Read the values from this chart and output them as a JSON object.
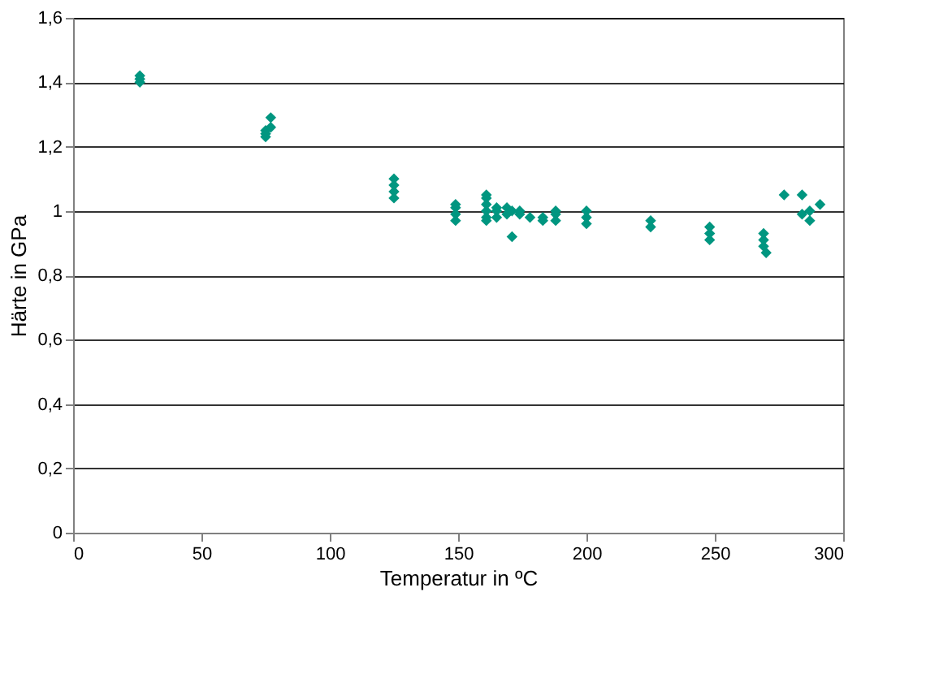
{
  "chart_data": {
    "type": "scatter",
    "xlabel": "Temperatur in ºC",
    "ylabel": "Härte in GPa",
    "marker": "diamond",
    "grid": "y",
    "xlim": [
      0,
      300
    ],
    "xticks": [
      0,
      50,
      100,
      150,
      200,
      250,
      300
    ],
    "ylim": [
      0,
      1.6
    ],
    "yticks": [
      {
        "value": 0,
        "label": "0"
      },
      {
        "value": 0.2,
        "label": "0,2"
      },
      {
        "value": 0.4,
        "label": "0,4"
      },
      {
        "value": 0.6,
        "label": "0,6"
      },
      {
        "value": 0.8,
        "label": "0,8"
      },
      {
        "value": 1,
        "label": "1"
      },
      {
        "value": 1.2,
        "label": "1,2"
      },
      {
        "value": 1.4,
        "label": "1,4"
      },
      {
        "value": 1.6,
        "label": "1,6"
      }
    ],
    "series": [
      {
        "color": "#009680",
        "x": [
          26,
          26,
          26,
          75,
          75,
          75,
          77,
          77,
          125,
          125,
          125,
          125,
          149,
          149,
          149,
          149,
          161,
          161,
          161,
          161,
          161,
          161,
          165,
          165,
          165,
          169,
          169,
          171,
          171,
          174,
          174,
          178,
          183,
          183,
          188,
          188,
          188,
          200,
          200,
          200,
          225,
          225,
          248,
          248,
          248,
          269,
          269,
          269,
          270,
          277,
          284,
          284,
          287,
          287,
          291
        ],
        "values": [
          1.4,
          1.41,
          1.42,
          1.23,
          1.24,
          1.25,
          1.29,
          1.26,
          1.1,
          1.08,
          1.06,
          1.04,
          0.97,
          0.99,
          1.01,
          1.02,
          1.05,
          1.04,
          1.0,
          0.98,
          0.97,
          1.02,
          0.98,
          1.0,
          1.01,
          0.99,
          1.01,
          0.92,
          1.0,
          1.0,
          0.99,
          0.98,
          0.97,
          0.98,
          0.97,
          0.99,
          1.0,
          0.96,
          0.98,
          1.0,
          0.95,
          0.97,
          0.91,
          0.93,
          0.95,
          0.89,
          0.91,
          0.93,
          0.87,
          1.05,
          1.05,
          0.99,
          0.97,
          1.0,
          1.02
        ]
      }
    ]
  }
}
